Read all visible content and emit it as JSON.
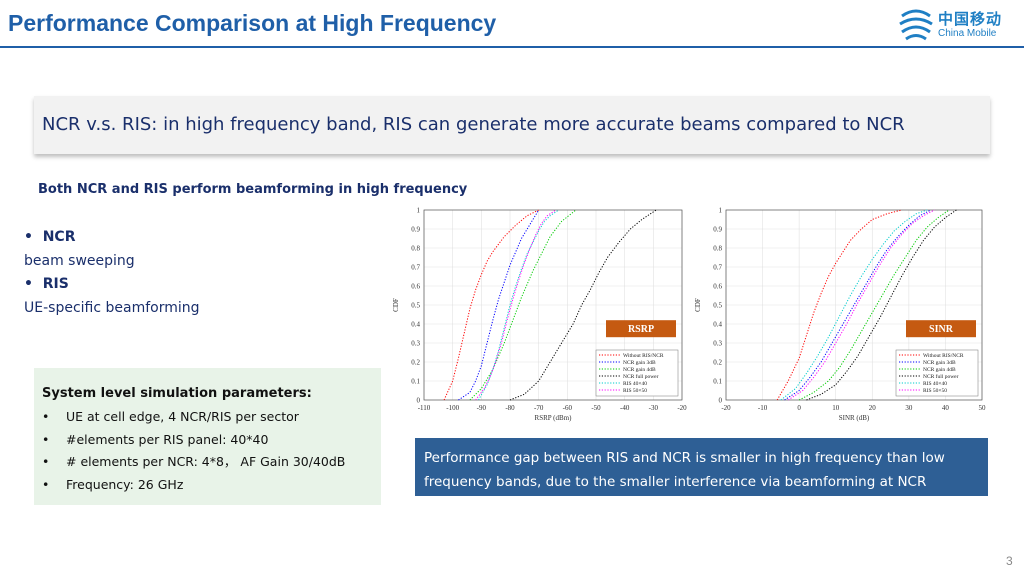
{
  "slide": {
    "title": "Performance Comparison at High Frequency",
    "page_number": "3"
  },
  "logo": {
    "name_cn": "中国移动",
    "name_en": "China Mobile"
  },
  "banner": {
    "text": "NCR v.s. RIS: in high frequency band, RIS can generate more accurate beams compared to NCR"
  },
  "features": {
    "heading": "Both NCR and RIS perform beamforming in high frequency",
    "ncr_label": "NCR",
    "ncr_desc": "beam sweeping",
    "ris_label": "RIS",
    "ris_desc": "UE-specific beamforming",
    "bullet": "•"
  },
  "params": {
    "heading": "System level simulation parameters:",
    "items": [
      "UE at cell edge, 4 NCR/RIS per sector",
      "#elements per RIS panel: 40*40",
      "# elements per NCR: 4*8， AF Gain 30/40dB",
      "Frequency: 26 GHz"
    ]
  },
  "note": {
    "text": "Performance gap between RIS and NCR is smaller in high frequency than low frequency bands, due to the smaller interference via beamforming at NCR"
  },
  "chart_data": [
    {
      "type": "line",
      "badge": "RSRP",
      "xlabel": "RSRP (dBm)",
      "ylabel": "CDF",
      "xlim": [
        -110,
        -20
      ],
      "ylim": [
        0,
        1
      ],
      "xticks": [
        -110,
        -100,
        -90,
        -80,
        -70,
        -60,
        -50,
        -40,
        -30,
        -20
      ],
      "yticks": [
        0,
        0.1,
        0.2,
        0.3,
        0.4,
        0.5,
        0.6,
        0.7,
        0.8,
        0.9,
        1
      ],
      "grid": true,
      "legend_position": "bottom-right",
      "series": [
        {
          "name": "Without RIS/NCR",
          "color": "#ff0000",
          "x": [
            -103,
            -100,
            -98,
            -96,
            -94,
            -92,
            -90,
            -88,
            -86,
            -84,
            -82,
            -78,
            -74,
            -70
          ],
          "y": [
            0,
            0.1,
            0.22,
            0.35,
            0.48,
            0.58,
            0.66,
            0.73,
            0.78,
            0.82,
            0.86,
            0.92,
            0.97,
            1
          ]
        },
        {
          "name": "NCR gain 3dB",
          "color": "#0000ff",
          "x": [
            -98,
            -94,
            -92,
            -90,
            -88,
            -86,
            -84,
            -82,
            -80,
            -78,
            -76,
            -74,
            -72,
            -70
          ],
          "y": [
            0,
            0.04,
            0.1,
            0.18,
            0.3,
            0.42,
            0.53,
            0.62,
            0.71,
            0.78,
            0.85,
            0.9,
            0.95,
            1
          ]
        },
        {
          "name": "NCR gain 4dB",
          "color": "#00cc00",
          "x": [
            -94,
            -90,
            -86,
            -82,
            -80,
            -78,
            -76,
            -74,
            -72,
            -70,
            -68,
            -66,
            -62,
            -57
          ],
          "y": [
            0,
            0.06,
            0.16,
            0.3,
            0.38,
            0.46,
            0.54,
            0.61,
            0.68,
            0.74,
            0.8,
            0.86,
            0.94,
            1
          ]
        },
        {
          "name": "NCR full power",
          "color": "#000000",
          "x": [
            -80,
            -75,
            -70,
            -66,
            -62,
            -58,
            -55,
            -52,
            -49,
            -46,
            -42,
            -38,
            -34,
            -29
          ],
          "y": [
            0,
            0.03,
            0.1,
            0.2,
            0.3,
            0.4,
            0.5,
            0.58,
            0.67,
            0.75,
            0.83,
            0.9,
            0.95,
            1
          ]
        },
        {
          "name": "RIS 40×40",
          "color": "#00cccc",
          "x": [
            -91,
            -88,
            -86,
            -84,
            -82,
            -80,
            -78,
            -76,
            -74,
            -72,
            -70,
            -68,
            -66,
            -63
          ],
          "y": [
            0,
            0.08,
            0.16,
            0.26,
            0.38,
            0.5,
            0.6,
            0.69,
            0.77,
            0.83,
            0.89,
            0.94,
            0.97,
            1
          ]
        },
        {
          "name": "RIS 50×50",
          "color": "#ff00ff",
          "x": [
            -92,
            -89,
            -87,
            -85,
            -83,
            -81,
            -79,
            -77,
            -75,
            -73,
            -71,
            -69,
            -67,
            -64
          ],
          "y": [
            0,
            0.06,
            0.12,
            0.2,
            0.3,
            0.42,
            0.53,
            0.63,
            0.72,
            0.8,
            0.87,
            0.93,
            0.97,
            1
          ]
        }
      ]
    },
    {
      "type": "line",
      "badge": "SINR",
      "xlabel": "SINR (dB)",
      "ylabel": "CDF",
      "xlim": [
        -20,
        50
      ],
      "ylim": [
        0,
        1
      ],
      "xticks": [
        -20,
        -10,
        0,
        10,
        20,
        30,
        40,
        50
      ],
      "yticks": [
        0,
        0.1,
        0.2,
        0.3,
        0.4,
        0.5,
        0.6,
        0.7,
        0.8,
        0.9,
        1
      ],
      "grid": true,
      "legend_position": "bottom-right",
      "series": [
        {
          "name": "Without RIS/NCR",
          "color": "#ff0000",
          "x": [
            -6,
            -3,
            0,
            2,
            4,
            6,
            8,
            10,
            12,
            14,
            17,
            20,
            24,
            28
          ],
          "y": [
            0,
            0.1,
            0.22,
            0.34,
            0.46,
            0.56,
            0.65,
            0.72,
            0.78,
            0.84,
            0.9,
            0.95,
            0.98,
            1
          ]
        },
        {
          "name": "NCR gain 3dB",
          "color": "#0000ff",
          "x": [
            -4,
            0,
            3,
            6,
            9,
            12,
            15,
            18,
            21,
            24,
            27,
            30,
            33,
            36
          ],
          "y": [
            0,
            0.05,
            0.12,
            0.2,
            0.3,
            0.4,
            0.5,
            0.6,
            0.7,
            0.79,
            0.86,
            0.92,
            0.97,
            1
          ]
        },
        {
          "name": "NCR gain 4dB",
          "color": "#00cc00",
          "x": [
            0,
            4,
            8,
            11,
            14,
            17,
            20,
            23,
            26,
            29,
            32,
            35,
            38,
            41
          ],
          "y": [
            0,
            0.04,
            0.1,
            0.17,
            0.26,
            0.36,
            0.46,
            0.56,
            0.66,
            0.75,
            0.84,
            0.91,
            0.96,
            1
          ]
        },
        {
          "name": "NCR full power",
          "color": "#000000",
          "x": [
            2,
            6,
            10,
            13,
            16,
            19,
            22,
            25,
            28,
            31,
            34,
            37,
            40,
            43
          ],
          "y": [
            0,
            0.03,
            0.08,
            0.15,
            0.23,
            0.33,
            0.43,
            0.54,
            0.65,
            0.75,
            0.84,
            0.91,
            0.96,
            1
          ]
        },
        {
          "name": "RIS 40×40",
          "color": "#00cccc",
          "x": [
            -5,
            -1,
            2,
            5,
            8,
            11,
            14,
            17,
            20,
            23,
            26,
            29,
            32,
            35
          ],
          "y": [
            0,
            0.06,
            0.14,
            0.23,
            0.33,
            0.44,
            0.55,
            0.65,
            0.74,
            0.82,
            0.89,
            0.94,
            0.98,
            1
          ]
        },
        {
          "name": "RIS 50×50",
          "color": "#ff00ff",
          "x": [
            -3,
            1,
            4,
            7,
            10,
            13,
            16,
            19,
            22,
            25,
            28,
            31,
            34,
            37
          ],
          "y": [
            0,
            0.05,
            0.12,
            0.2,
            0.3,
            0.4,
            0.51,
            0.61,
            0.71,
            0.8,
            0.87,
            0.93,
            0.97,
            1
          ]
        }
      ]
    }
  ]
}
